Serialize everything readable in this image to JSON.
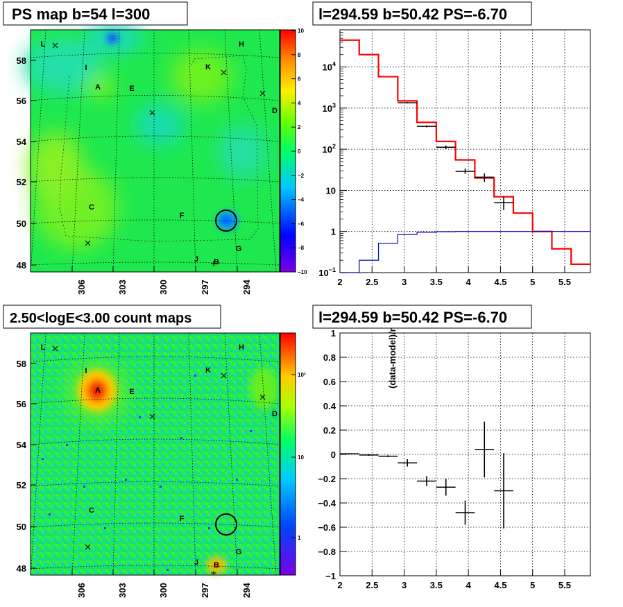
{
  "panels": {
    "ps_map": {
      "title": "PS map b=54 l=300",
      "x_ticks": [
        "306",
        "303",
        "300",
        "297",
        "294"
      ],
      "y_ticks": [
        "48",
        "50",
        "52",
        "54",
        "56",
        "58"
      ],
      "colorbar_ticks": [
        "10",
        "8",
        "6",
        "4",
        "2",
        "0",
        "−2",
        "−4",
        "−6",
        "−8",
        "−10"
      ],
      "letters": [
        "L",
        "H",
        "I",
        "K",
        "A",
        "E",
        "D",
        "C",
        "F",
        "G",
        "J",
        "B"
      ]
    },
    "count_map": {
      "title": "2.50<logE<3.00 count maps",
      "x_ticks": [
        "306",
        "303",
        "300",
        "297",
        "294"
      ],
      "y_ticks": [
        "48",
        "50",
        "52",
        "54",
        "56",
        "58"
      ],
      "colorbar_ticks": [
        "10²",
        "10",
        "1"
      ],
      "letters": [
        "L",
        "H",
        "I",
        "K",
        "A",
        "E",
        "D",
        "C",
        "F",
        "G",
        "J",
        "B"
      ]
    },
    "spectrum": {
      "title": "l=294.59 b=50.42 PS=-6.70"
    },
    "residual": {
      "title": "l=294.59 b=50.42 PS=-6.70",
      "ylabel": "(data-model)/model"
    }
  },
  "colors": {
    "model_red": "#ff0000",
    "bkg_blue": "#0000cc",
    "data_black": "#000000"
  },
  "chart_data": [
    {
      "type": "heatmap",
      "title": "PS map b=54 l=300",
      "xlabel": "",
      "ylabel": "",
      "x_ticks": [
        306,
        303,
        300,
        297,
        294
      ],
      "y_ticks": [
        48,
        50,
        52,
        54,
        56,
        58
      ],
      "zlim": [
        -10,
        10
      ],
      "colorbar_ticks": [
        10,
        8,
        6,
        4,
        2,
        0,
        -2,
        -4,
        -6,
        -8,
        -10
      ],
      "source_labels": [
        "L",
        "H",
        "I",
        "K",
        "A",
        "E",
        "D",
        "C",
        "F",
        "G",
        "J",
        "B"
      ]
    },
    {
      "type": "step",
      "title": "l=294.59 b=50.42 PS=-6.70",
      "xlim": [
        2,
        5.9
      ],
      "ylim": [
        0.1,
        80000
      ],
      "yscale": "log",
      "x_ticks": [
        2,
        2.5,
        3,
        3.5,
        4,
        4.5,
        5,
        5.5
      ],
      "y_ticks": [
        "10^-1",
        "1",
        "10",
        "10^2",
        "10^3",
        "10^4"
      ],
      "series": [
        {
          "color": "red",
          "edges": [
            2,
            2.3,
            2.6,
            2.9,
            3.2,
            3.5,
            3.8,
            4.1,
            4.4,
            4.7,
            5.0,
            5.3,
            5.6,
            5.9
          ],
          "values": [
            45000,
            20000,
            5800,
            1500,
            450,
            155,
            55,
            20,
            7,
            2.8,
            1.0,
            0.38,
            0.16
          ]
        },
        {
          "color": "blue",
          "edges": [
            2,
            2.3,
            2.6,
            2.9,
            3.2,
            3.5,
            3.8,
            4.1,
            4.4,
            4.7,
            5.0,
            5.3,
            5.6,
            5.9
          ],
          "values": [
            0.1,
            0.2,
            0.52,
            0.85,
            0.96,
            0.99,
            1.0,
            1.0,
            1.0,
            1.0,
            1.0,
            1.0,
            1.0
          ]
        },
        {
          "color": "black",
          "points": [
            {
              "x": 3.05,
              "y": 1350,
              "xerr": 0.15,
              "ylo": 1300,
              "yhi": 1400
            },
            {
              "x": 3.35,
              "y": 360,
              "xerr": 0.15,
              "ylo": 340,
              "yhi": 380
            },
            {
              "x": 3.65,
              "y": 112,
              "xerr": 0.15,
              "ylo": 100,
              "yhi": 124
            },
            {
              "x": 3.95,
              "y": 29,
              "xerr": 0.15,
              "ylo": 25,
              "yhi": 34
            },
            {
              "x": 4.25,
              "y": 21,
              "xerr": 0.15,
              "ylo": 16,
              "yhi": 26
            },
            {
              "x": 4.55,
              "y": 5,
              "xerr": 0.15,
              "ylo": 3.3,
              "yhi": 7
            }
          ]
        }
      ]
    },
    {
      "type": "heatmap",
      "title": "2.50<logE<3.00 count maps",
      "x_ticks": [
        306,
        303,
        300,
        297,
        294
      ],
      "y_ticks": [
        48,
        50,
        52,
        54,
        56,
        58
      ],
      "colorbar_ticks": [
        "10^2",
        "10",
        "1"
      ],
      "source_labels": [
        "L",
        "H",
        "I",
        "K",
        "A",
        "E",
        "D",
        "C",
        "F",
        "G",
        "J",
        "B"
      ]
    },
    {
      "type": "scatter",
      "title": "l=294.59 b=50.42 PS=-6.70",
      "ylabel": "(data-model)/model",
      "xlim": [
        2,
        5.9
      ],
      "ylim": [
        -1,
        1
      ],
      "x_ticks": [
        2,
        2.5,
        3,
        3.5,
        4,
        4.5,
        5,
        5.5
      ],
      "y_ticks": [
        -1,
        -0.8,
        -0.6,
        -0.4,
        -0.2,
        0,
        0.2,
        0.4,
        0.6,
        0.8,
        1
      ],
      "points": [
        {
          "x": 2.15,
          "y": 0.005,
          "xerr": 0.15,
          "yerr": 0.005
        },
        {
          "x": 2.45,
          "y": -0.005,
          "xerr": 0.15,
          "yerr": 0.007
        },
        {
          "x": 2.75,
          "y": -0.015,
          "xerr": 0.15,
          "yerr": 0.008
        },
        {
          "x": 3.05,
          "y": -0.07,
          "xerr": 0.15,
          "yerr": 0.03
        },
        {
          "x": 3.35,
          "y": -0.22,
          "xerr": 0.15,
          "yerr": 0.04
        },
        {
          "x": 3.65,
          "y": -0.27,
          "xerr": 0.15,
          "yerr": 0.07
        },
        {
          "x": 3.95,
          "y": -0.48,
          "xerr": 0.15,
          "yerr": 0.1
        },
        {
          "x": 4.25,
          "y": 0.04,
          "xerr": 0.15,
          "yerr": 0.23
        },
        {
          "x": 4.55,
          "y": -0.3,
          "xerr": 0.15,
          "yerr": 0.31
        }
      ]
    }
  ]
}
